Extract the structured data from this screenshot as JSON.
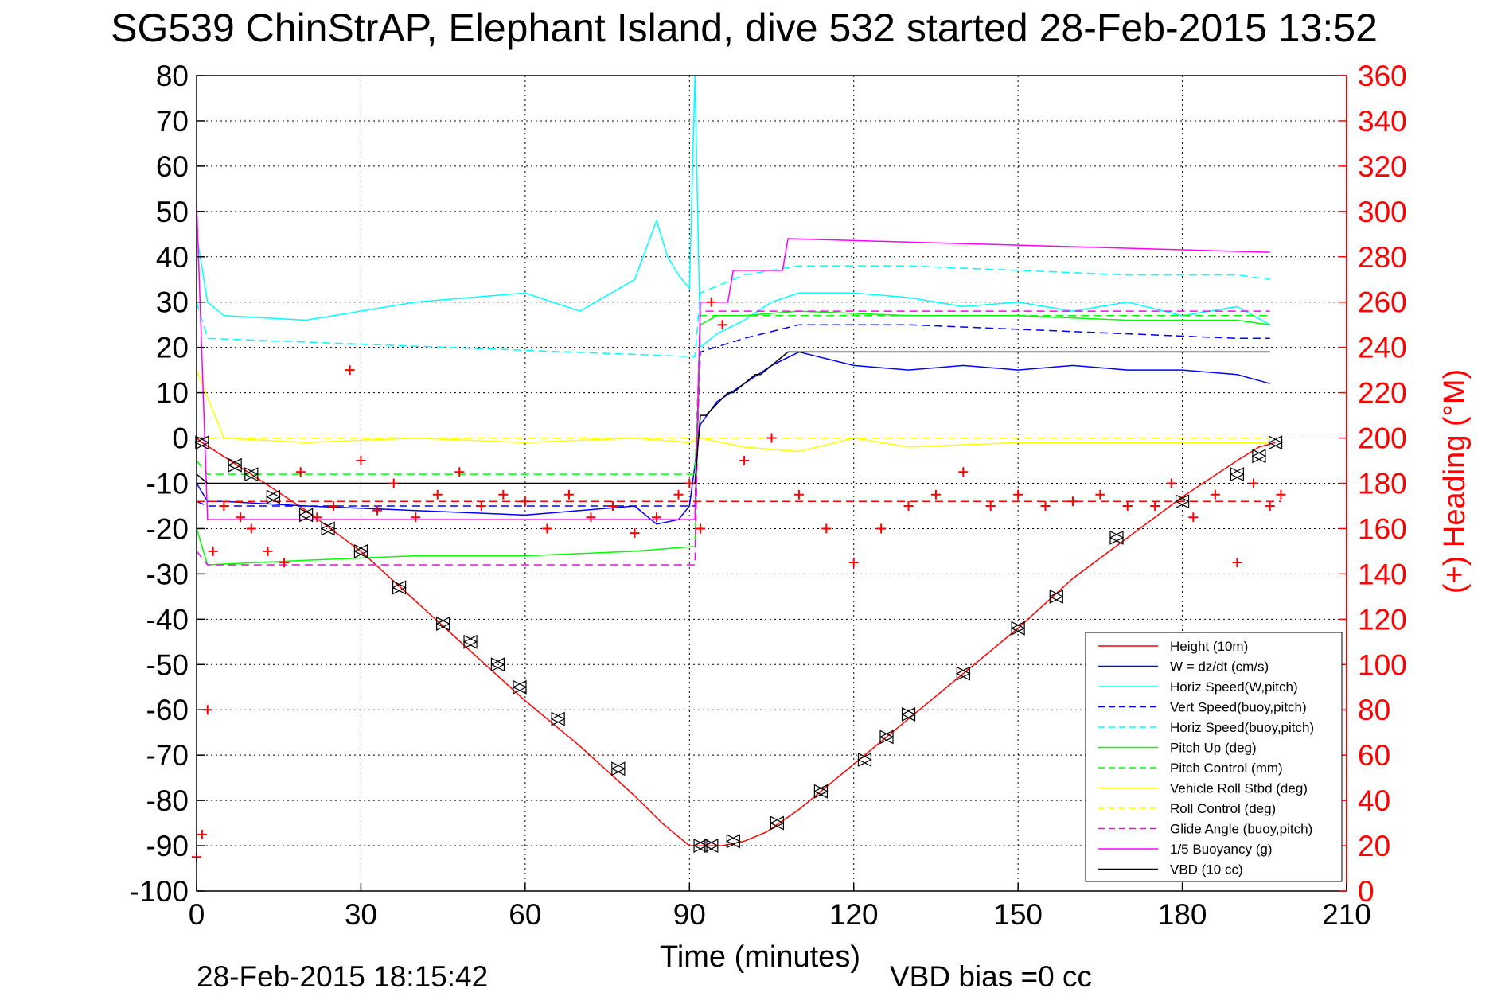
{
  "chart_data": {
    "type": "line",
    "title": "SG539 ChinStrAP, Elephant Island, dive 532 started 28-Feb-2015 13:52",
    "xlabel": "Time (minutes)",
    "ylabel_right": "(+) Heading (°M)",
    "footer_left": "28-Feb-2015 18:15:42",
    "footer_right": "VBD bias =0 cc",
    "xlim": [
      0,
      210
    ],
    "ylim": [
      -100,
      80
    ],
    "ylim_right": [
      0,
      360
    ],
    "x_ticks": [
      "0",
      "30",
      "60",
      "90",
      "120",
      "150",
      "180",
      "210"
    ],
    "y_ticks": [
      "80",
      "70",
      "60",
      "50",
      "40",
      "30",
      "20",
      "10",
      "0",
      "-10",
      "-20",
      "-30",
      "-40",
      "-50",
      "-60",
      "-70",
      "-80",
      "-90",
      "-100"
    ],
    "y_right_ticks": [
      "360",
      "340",
      "320",
      "300",
      "280",
      "260",
      "240",
      "220",
      "200",
      "180",
      "160",
      "140",
      "120",
      "100",
      "80",
      "60",
      "40",
      "20",
      "0"
    ],
    "grid": true,
    "legend_position": "lower-right",
    "colors": {
      "height": "#ff0000",
      "w": "#0000ff",
      "horiz_speed": "#00ffff",
      "vert_speed": "#0000ff",
      "horiz_speed_buoy": "#00ffff",
      "pitch_up": "#00ff00",
      "pitch_control": "#00ff00",
      "vehicle_roll": "#ffff00",
      "roll_control": "#ffff00",
      "glide_angle": "#ff00ff",
      "buoyancy": "#ff00ff",
      "vbd": "#000000",
      "heading": "#ff0000"
    },
    "legend": [
      {
        "key": "height",
        "label": "Height (10m)",
        "style": "solid"
      },
      {
        "key": "w",
        "label": "W = dz/dt (cm/s)",
        "style": "solid"
      },
      {
        "key": "horiz_speed",
        "label": "Horiz Speed(W,pitch)",
        "style": "solid"
      },
      {
        "key": "vert_speed",
        "label": "Vert Speed(buoy,pitch)",
        "style": "dashed"
      },
      {
        "key": "horiz_speed_buoy",
        "label": "Horiz Speed(buoy,pitch)",
        "style": "dashed"
      },
      {
        "key": "pitch_up",
        "label": "Pitch Up (deg)",
        "style": "solid"
      },
      {
        "key": "pitch_control",
        "label": "Pitch Control (mm)",
        "style": "dashed"
      },
      {
        "key": "vehicle_roll",
        "label": "Vehicle Roll Stbd (deg)",
        "style": "solid"
      },
      {
        "key": "roll_control",
        "label": "Roll Control (deg)",
        "style": "dashed"
      },
      {
        "key": "glide_angle",
        "label": "Glide Angle (buoy,pitch)",
        "style": "dashed"
      },
      {
        "key": "buoyancy",
        "label": "1/5 Buoyancy (g)",
        "style": "solid"
      },
      {
        "key": "vbd",
        "label": "VBD (10 cc)",
        "style": "solid"
      }
    ],
    "series": [
      {
        "key": "height",
        "x": [
          0,
          1,
          10,
          20,
          30,
          40,
          50,
          60,
          70,
          80,
          85,
          88,
          90,
          92,
          94,
          96,
          100,
          104,
          110,
          120,
          130,
          140,
          150,
          160,
          170,
          180,
          185,
          190,
          194,
          197
        ],
        "values": [
          0,
          -1,
          -8,
          -16,
          -25,
          -36,
          -47,
          -58,
          -68,
          -79,
          -85,
          -88,
          -90,
          -90,
          -90,
          -90,
          -89,
          -87,
          -82,
          -72,
          -62,
          -52,
          -42,
          -31,
          -22,
          -13,
          -9,
          -5,
          -2,
          -1
        ]
      },
      {
        "key": "w",
        "x": [
          0,
          2,
          5,
          20,
          40,
          60,
          70,
          80,
          84,
          88,
          90,
          92,
          95,
          100,
          105,
          110,
          120,
          130,
          140,
          150,
          160,
          170,
          180,
          190,
          196
        ],
        "values": [
          -10,
          -14,
          -14,
          -15,
          -16,
          -17,
          -16,
          -15,
          -19,
          -18,
          -15,
          3,
          8,
          12,
          16,
          19,
          16,
          15,
          16,
          15,
          16,
          15,
          15,
          14,
          12
        ]
      },
      {
        "key": "horiz_speed",
        "x": [
          0,
          2,
          5,
          20,
          40,
          60,
          70,
          80,
          84,
          86,
          88,
          90,
          91,
          92,
          95,
          100,
          105,
          110,
          120,
          130,
          140,
          150,
          160,
          170,
          180,
          190,
          196
        ],
        "values": [
          45,
          30,
          27,
          26,
          30,
          32,
          28,
          35,
          48,
          40,
          36,
          33,
          80,
          20,
          23,
          26,
          30,
          32,
          32,
          31,
          29,
          30,
          28,
          30,
          27,
          29,
          25
        ]
      },
      {
        "key": "vert_speed",
        "x": [
          0,
          2,
          90,
          91,
          92,
          100,
          110,
          130,
          150,
          170,
          190,
          196
        ],
        "values": [
          -14,
          -15,
          -15,
          -15,
          19,
          22,
          25,
          25,
          24,
          23,
          22,
          22
        ]
      },
      {
        "key": "horiz_speed_buoy",
        "x": [
          0,
          2,
          90,
          91,
          92,
          100,
          110,
          130,
          150,
          170,
          190,
          196
        ],
        "values": [
          30,
          22,
          18,
          18,
          32,
          36,
          38,
          38,
          37,
          36,
          36,
          35
        ]
      },
      {
        "key": "pitch_up",
        "x": [
          0,
          2,
          20,
          40,
          60,
          80,
          90,
          91,
          92,
          95,
          100,
          110,
          130,
          150,
          170,
          190,
          196
        ],
        "values": [
          -20,
          -28,
          -27,
          -26,
          -26,
          -25,
          -24,
          -24,
          25,
          27,
          27,
          28,
          27,
          27,
          26,
          26,
          25
        ]
      },
      {
        "key": "pitch_control",
        "x": [
          0,
          2,
          90,
          91,
          92,
          110,
          196
        ],
        "values": [
          -5,
          -8,
          -8,
          -8,
          27,
          27,
          27
        ]
      },
      {
        "key": "vehicle_roll",
        "x": [
          0,
          5,
          20,
          40,
          60,
          80,
          90,
          92,
          100,
          110,
          120,
          130,
          150,
          170,
          190,
          196
        ],
        "values": [
          15,
          0,
          -1,
          0,
          -1,
          0,
          -1,
          0,
          -2,
          -3,
          0,
          -2,
          -1,
          -1,
          -1,
          -1
        ]
      },
      {
        "key": "roll_control",
        "x": [
          0,
          2,
          196
        ],
        "values": [
          0,
          0,
          0
        ]
      },
      {
        "key": "glide_angle",
        "x": [
          0,
          2,
          90,
          91,
          92,
          196
        ],
        "values": [
          -25,
          -28,
          -28,
          -28,
          28,
          28
        ]
      },
      {
        "key": "buoyancy",
        "x": [
          0,
          2,
          90,
          91,
          92,
          97,
          98,
          107,
          108,
          196
        ],
        "values": [
          52,
          -18,
          -18,
          -18,
          30,
          30,
          37,
          37,
          44,
          41
        ]
      },
      {
        "key": "vbd",
        "x": [
          0,
          2,
          90,
          91,
          92,
          93,
          97,
          98,
          102,
          103,
          108,
          109,
          196
        ],
        "values": [
          -8,
          -10,
          -10,
          -10,
          5,
          5,
          10,
          10,
          14,
          14,
          19,
          19,
          19
        ]
      }
    ],
    "heading_series": {
      "axis": "right",
      "x": [
        0,
        1,
        2,
        3,
        5,
        8,
        10,
        13,
        16,
        19,
        22,
        25,
        28,
        30,
        33,
        36,
        40,
        44,
        48,
        52,
        56,
        60,
        64,
        68,
        72,
        76,
        80,
        84,
        88,
        90,
        92,
        94,
        96,
        100,
        105,
        110,
        115,
        120,
        125,
        130,
        135,
        140,
        145,
        150,
        155,
        160,
        165,
        170,
        175,
        178,
        182,
        186,
        190,
        193,
        196,
        198
      ],
      "values": [
        15,
        25,
        80,
        150,
        170,
        165,
        160,
        150,
        145,
        185,
        165,
        170,
        230,
        190,
        168,
        180,
        165,
        175,
        185,
        170,
        175,
        172,
        160,
        175,
        165,
        170,
        158,
        165,
        175,
        180,
        160,
        260,
        250,
        190,
        200,
        175,
        160,
        145,
        160,
        170,
        175,
        185,
        170,
        175,
        170,
        172,
        175,
        170,
        170,
        180,
        165,
        175,
        145,
        180,
        170,
        175
      ]
    },
    "mean_heading": 172,
    "markers": {
      "x": [
        1,
        7,
        10,
        14,
        20,
        24,
        30,
        37,
        45,
        50,
        55,
        59,
        66,
        77,
        92,
        94,
        98,
        106,
        114,
        122,
        126,
        130,
        140,
        150,
        157,
        168,
        180,
        190,
        194,
        197
      ],
      "values": [
        -1,
        -6,
        -8,
        -13,
        -17,
        -20,
        -25,
        -33,
        -41,
        -45,
        -50,
        -55,
        -62,
        -73,
        -90,
        -90,
        -89,
        -85,
        -78,
        -71,
        -66,
        -61,
        -52,
        -42,
        -35,
        -22,
        -14,
        -8,
        -4,
        -1
      ]
    }
  }
}
